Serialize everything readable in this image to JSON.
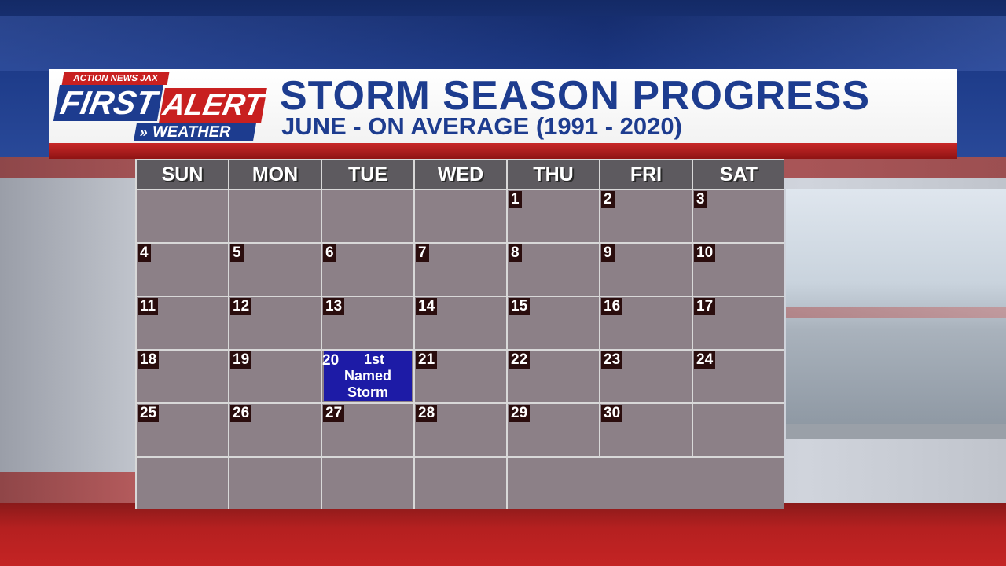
{
  "branding": {
    "tag": "ACTION NEWS JAX",
    "first": "FIRST",
    "alert": "ALERT",
    "chevrons": "»",
    "weather": "WEATHER"
  },
  "header": {
    "title": "STORM SEASON PROGRESS",
    "subtitle": "JUNE - ON AVERAGE (1991 - 2020)"
  },
  "calendar": {
    "days": [
      "SUN",
      "MON",
      "TUE",
      "WED",
      "THU",
      "FRI",
      "SAT"
    ],
    "weeks": [
      [
        "",
        "",
        "",
        "",
        "1",
        "2",
        "3"
      ],
      [
        "4",
        "5",
        "6",
        "7",
        "8",
        "9",
        "10"
      ],
      [
        "11",
        "12",
        "13",
        "14",
        "15",
        "16",
        "17"
      ],
      [
        "18",
        "19",
        "20",
        "21",
        "22",
        "23",
        "24"
      ],
      [
        "25",
        "26",
        "27",
        "28",
        "29",
        "30",
        ""
      ],
      [
        "",
        "",
        "",
        "",
        "",
        "",
        ""
      ]
    ],
    "event": {
      "date": "20",
      "lines": [
        "1st",
        "Named",
        "Storm"
      ]
    }
  },
  "colors": {
    "brand_blue": "#1d3c8f",
    "brand_red": "#c82020",
    "cell_fill": "#8c8087",
    "header_fill": "#5d5a5f",
    "event_fill": "#1d1ba6"
  }
}
